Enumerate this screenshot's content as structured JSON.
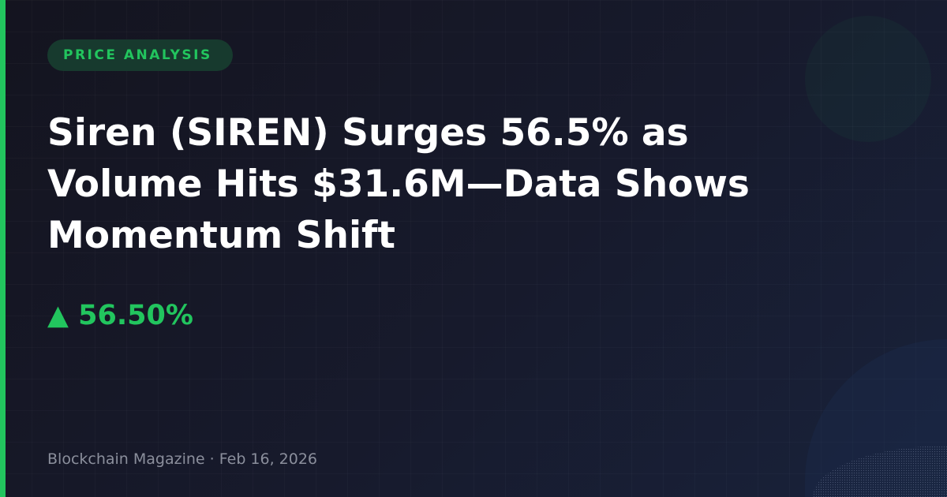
{
  "category": "PRICE ANALYSIS",
  "headline": "Siren (SIREN) Surges 56.5% as Volume Hits $31.6M—Data Shows Momentum Shift",
  "price_change": {
    "arrow": "▲",
    "value": "56.50%",
    "direction": "up"
  },
  "footer": {
    "source": "Blockchain Magazine",
    "separator": " · ",
    "date": "Feb 16, 2026"
  },
  "colors": {
    "accent": "#22c55e",
    "background": "#171a2c",
    "text": "#ffffff",
    "muted": "#8b8f9c"
  }
}
